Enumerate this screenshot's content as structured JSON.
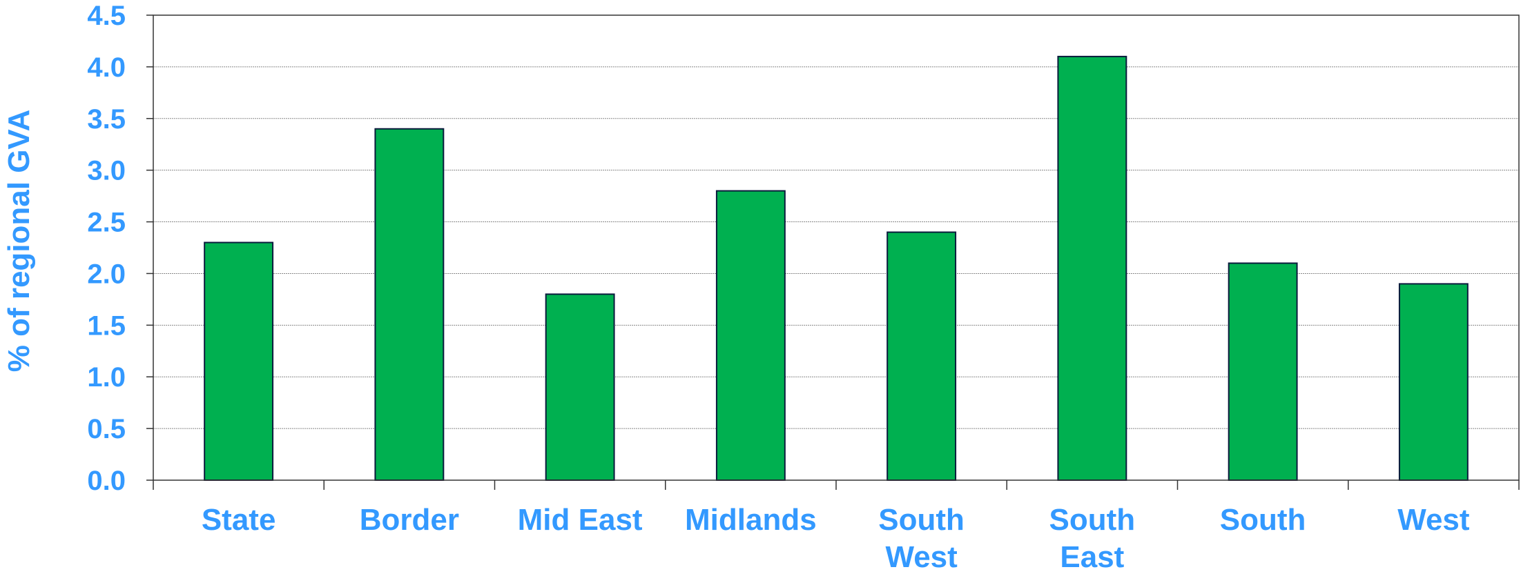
{
  "chart_data": {
    "type": "bar",
    "ylabel": "% of regional GVA",
    "xlabel": "",
    "ylim": [
      0,
      4.5
    ],
    "yticks": [
      "0.0",
      "0.5",
      "1.0",
      "1.5",
      "2.0",
      "2.5",
      "3.0",
      "3.5",
      "4.0",
      "4.5"
    ],
    "categories": [
      [
        "State"
      ],
      [
        "Border"
      ],
      [
        "Mid East"
      ],
      [
        "Midlands"
      ],
      [
        "South",
        "West"
      ],
      [
        "South",
        "East"
      ],
      [
        "South"
      ],
      [
        "West"
      ]
    ],
    "values": [
      2.3,
      3.4,
      1.8,
      2.8,
      2.4,
      4.1,
      2.1,
      1.9
    ],
    "grid": true,
    "legend": "none",
    "colors": {
      "bar_fill": "#00b050",
      "bar_stroke": "#0a1a3c",
      "text": "#3399ff",
      "axis": "#333333",
      "grid": "#888888"
    }
  }
}
